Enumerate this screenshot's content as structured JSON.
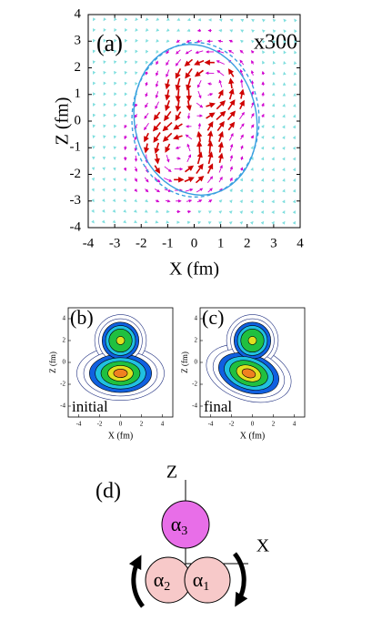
{
  "panel_a": {
    "type": "vector-field",
    "label": "(a)",
    "scale_note": "x300",
    "xlabel": "X (fm)",
    "ylabel": "Z (fm)",
    "xlim": [
      -4,
      4
    ],
    "ylim": [
      -4,
      4
    ],
    "xticks": [
      -4,
      -3,
      -2,
      -1,
      0,
      1,
      2,
      3,
      4
    ],
    "yticks": [
      -4,
      -3,
      -2,
      -1,
      0,
      1,
      2,
      3,
      4
    ]
  },
  "panel_b": {
    "type": "contour",
    "label": "(b)",
    "caption": "initial",
    "xlabel": "X (fm)",
    "ylabel": "Z (fm)",
    "xlim": [
      -5,
      5
    ],
    "ylim": [
      -5,
      5
    ],
    "xticks": [
      -4,
      -2,
      0,
      2,
      4
    ],
    "yticks": [
      -4,
      -2,
      0,
      2,
      4
    ]
  },
  "panel_c": {
    "type": "contour",
    "label": "(c)",
    "caption": "final",
    "xlabel": "X (fm)",
    "ylabel": "Z (fm)",
    "xlim": [
      -5,
      5
    ],
    "ylim": [
      -5,
      5
    ],
    "xticks": [
      -4,
      -2,
      0,
      2,
      4
    ],
    "yticks": [
      -4,
      -2,
      0,
      2,
      4
    ]
  },
  "panel_d": {
    "label": "(d)",
    "axis_z": "Z",
    "axis_x": "X",
    "clusters": [
      {
        "symbol": "α",
        "index": "3"
      },
      {
        "symbol": "α",
        "index": "2"
      },
      {
        "symbol": "α",
        "index": "1"
      }
    ]
  }
}
